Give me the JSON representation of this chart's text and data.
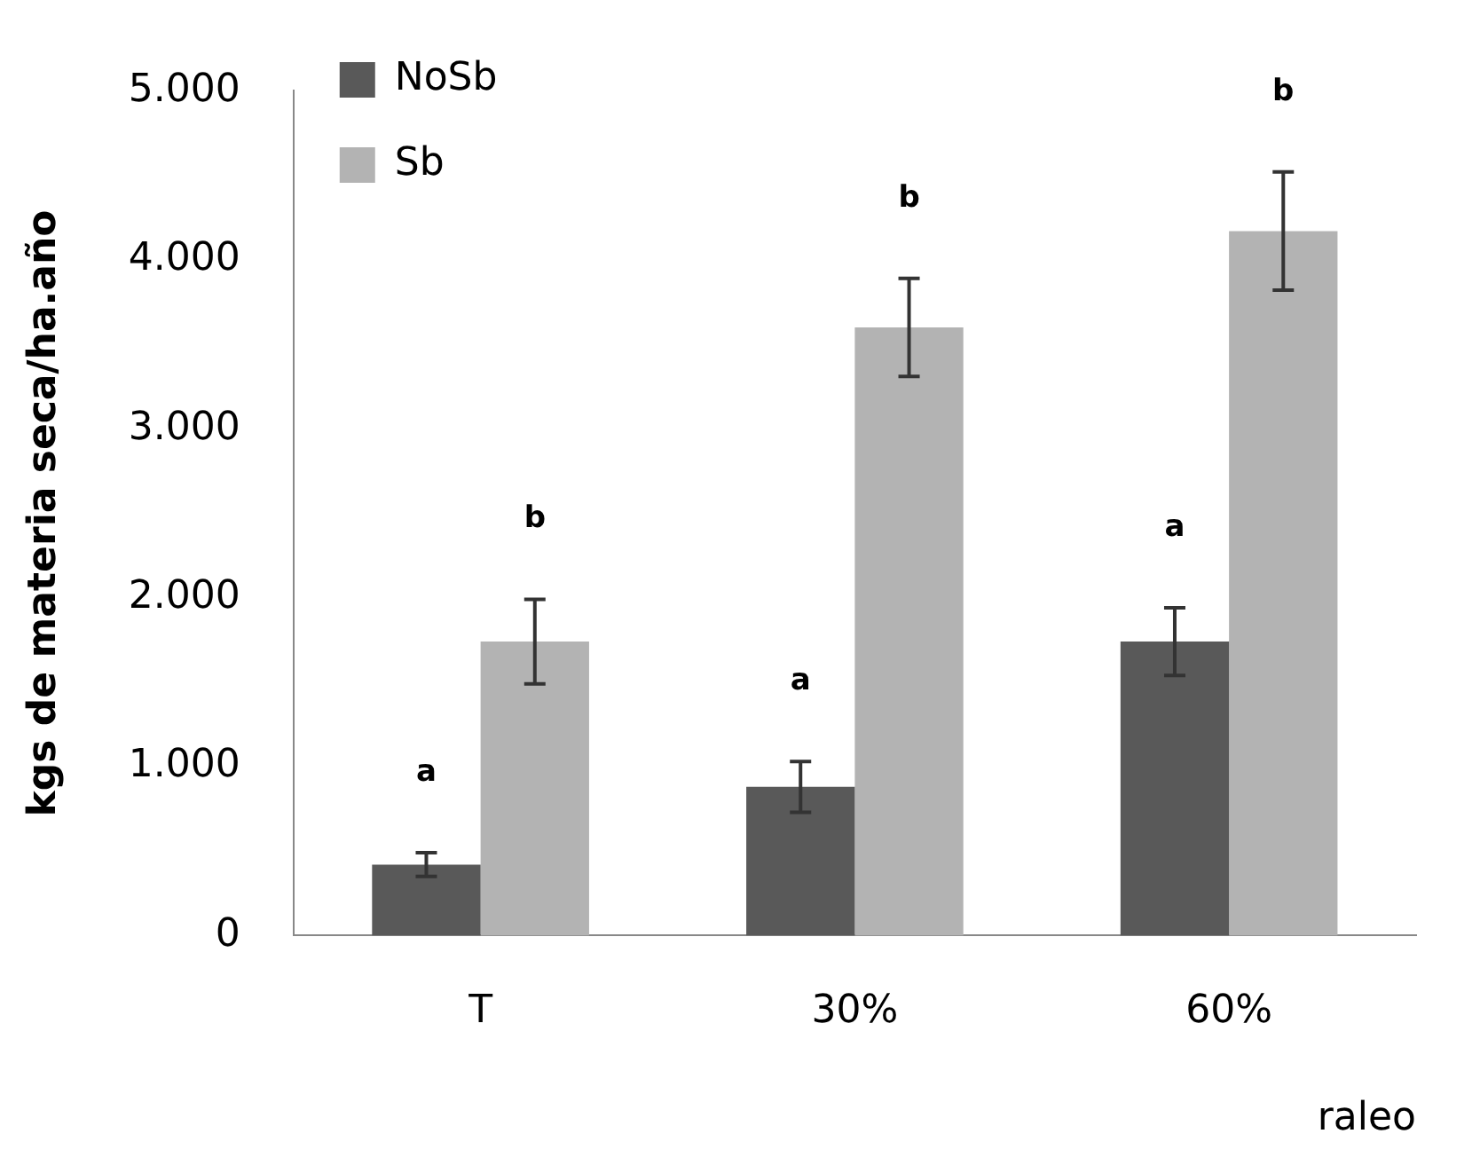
{
  "chart_data": {
    "type": "bar",
    "xlabel": "raleo",
    "ylabel": "kgs de materia seca/ha.año",
    "categories": [
      "T",
      "30%",
      "60%"
    ],
    "series": [
      {
        "name": "NoSb",
        "color": "#595959",
        "values": [
          420,
          880,
          1740
        ],
        "errors": [
          70,
          150,
          200
        ]
      },
      {
        "name": "Sb",
        "color": "#b3b3b3",
        "values": [
          1740,
          3600,
          4170
        ],
        "errors": [
          250,
          290,
          350
        ]
      }
    ],
    "ylim": [
      0,
      5000
    ],
    "yticks": [
      0,
      {
        "value": 1000,
        "label": "1.000"
      },
      {
        "value": 2000,
        "label": "2.000"
      },
      {
        "value": 3000,
        "label": "3.000"
      },
      {
        "value": 4000,
        "label": "4.000"
      },
      {
        "value": 5000,
        "label": "5.000"
      }
    ],
    "grid": false,
    "legend": "top left",
    "annotations": [
      "a",
      "b",
      "a",
      "b",
      "a",
      "b"
    ]
  }
}
